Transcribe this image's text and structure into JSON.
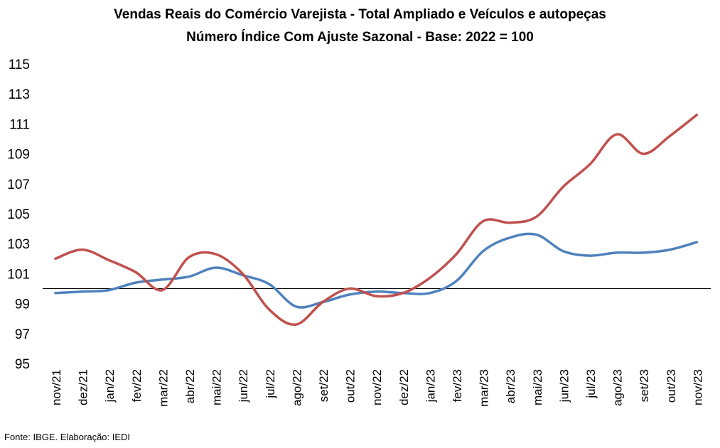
{
  "chart_data": {
    "type": "line",
    "title": "Vendas Reais do Comércio Varejista - Total Ampliado e Veículos e autopeças",
    "subtitle": "Número Índice Com Ajuste Sazonal - Base: 2022 = 100",
    "xlabel": "",
    "ylabel": "",
    "ylim": [
      95,
      115
    ],
    "yticks": [
      "115",
      "113",
      "111",
      "109",
      "107",
      "105",
      "103",
      "101",
      "99",
      "97",
      "95"
    ],
    "ytick_values": [
      115,
      113,
      111,
      109,
      107,
      105,
      103,
      101,
      99,
      97,
      95
    ],
    "categories": [
      "nov/21",
      "dez/21",
      "jan/22",
      "fev/22",
      "mar/22",
      "abr/22",
      "mai/22",
      "jun/22",
      "jul/22",
      "ago/22",
      "set/22",
      "out/22",
      "nov/22",
      "dez/22",
      "jan/23",
      "fev/23",
      "mar/23",
      "abr/23",
      "mai/23",
      "jun/23",
      "jul/23",
      "ago/23",
      "set/23",
      "out/23",
      "nov/23"
    ],
    "reference_line": 100,
    "grid": false,
    "legend": "none",
    "series": [
      {
        "color": "#4f81bd",
        "values": [
          99.7,
          99.8,
          99.9,
          100.4,
          100.6,
          100.8,
          101.4,
          100.9,
          100.3,
          98.8,
          99.1,
          99.6,
          99.8,
          99.7,
          99.7,
          100.5,
          102.5,
          103.4,
          103.6,
          102.5,
          102.2,
          102.4,
          102.4,
          102.6,
          103.1
        ]
      },
      {
        "color": "#c0504d",
        "values": [
          102.0,
          102.6,
          101.9,
          101.1,
          99.9,
          102.1,
          102.3,
          101.0,
          98.6,
          97.6,
          99.1,
          100.0,
          99.5,
          99.7,
          100.7,
          102.3,
          104.5,
          104.4,
          104.8,
          106.8,
          108.3,
          110.3,
          109.0,
          110.2,
          111.6
        ]
      }
    ]
  },
  "source_note": "Fonte: IBGE. Elaboração: IEDI"
}
